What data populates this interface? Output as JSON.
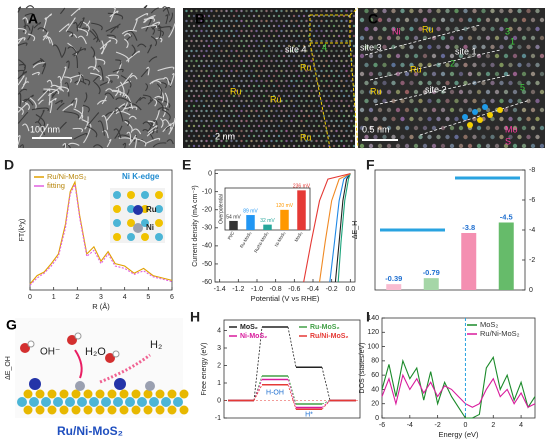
{
  "images": [
    {
      "label": "A",
      "texts": [
        "100 nm"
      ]
    },
    {
      "label": "B",
      "texts": [
        "site 4",
        "Ru",
        "Ru",
        "Ru",
        "Ru",
        "4",
        "2 nm"
      ]
    },
    {
      "label": "C",
      "texts": [
        "Ni",
        "Ru",
        "site 3",
        "site 1",
        "3",
        "1",
        "2",
        "Ru",
        "Ru",
        "site 2",
        "5",
        "Mo",
        "S",
        "0.5 nm"
      ]
    },
    {
      "label": "G",
      "texts": [
        "OH⁻",
        "H₂O",
        "H₂",
        "ΔE_OH",
        "Ru/Ni-MoS₂"
      ]
    }
  ],
  "chart_data": [
    {
      "type": "line",
      "label": "D",
      "xlabel": "R (Å)",
      "ylabel": "FT(k³χ)",
      "annotations": [
        "Ni K-edge",
        "Ru",
        "Ni"
      ],
      "xlim": [
        0,
        6
      ],
      "xticks": [
        0,
        1,
        2,
        3,
        4,
        5,
        6
      ],
      "ylim": [
        0,
        1
      ],
      "x": [
        0,
        0.3,
        0.6,
        0.9,
        1.2,
        1.5,
        1.7,
        1.9,
        2.1,
        2.4,
        2.7,
        3.0,
        3.3,
        3.6,
        4.0,
        4.4,
        4.8,
        5.2,
        5.6,
        6.0
      ],
      "series": [
        {
          "name": "Ru/Ni-MoS₂",
          "color": "#e0a000",
          "values": [
            0.05,
            0.12,
            0.15,
            0.22,
            0.3,
            0.55,
            0.82,
            0.9,
            0.62,
            0.3,
            0.36,
            0.24,
            0.32,
            0.22,
            0.2,
            0.14,
            0.18,
            0.12,
            0.1,
            0.08
          ]
        },
        {
          "name": "fitting",
          "color": "#e060e0",
          "values": [
            0.04,
            0.1,
            0.14,
            0.2,
            0.28,
            0.52,
            0.8,
            0.88,
            0.6,
            0.28,
            0.33,
            0.22,
            0.3,
            0.2,
            0.18,
            0.13,
            0.16,
            0.11,
            0.09,
            0.07
          ]
        }
      ]
    },
    {
      "type": "line",
      "label": "E",
      "xlabel": "Potential (V vs RHE)",
      "ylabel": "Current density (mA cm⁻²)",
      "xlim": [
        -1.45,
        0.05
      ],
      "xticks": [
        -1.4,
        -1.2,
        {
          "value": -1,
          "label": "-1.0"
        },
        -0.8,
        -0.6,
        -0.4,
        -0.2,
        {
          "value": 0,
          "label": "0.0"
        }
      ],
      "ylim": [
        -60,
        2
      ],
      "yticks": [
        0,
        -10,
        -20,
        -30,
        -40,
        -50,
        -60
      ],
      "series": [
        {
          "color": "#222222",
          "x": [
            0,
            -0.04,
            -0.08,
            -0.12,
            -0.16
          ],
          "values": [
            0,
            -3,
            -15,
            -38,
            -60
          ]
        },
        {
          "color": "#1e88e5",
          "x": [
            0,
            -0.07,
            -0.12,
            -0.17,
            -0.22
          ],
          "values": [
            0,
            -3,
            -15,
            -38,
            -60
          ]
        },
        {
          "color": "#1aa37a",
          "x": [
            0,
            -0.02,
            -0.06,
            -0.1,
            -0.13
          ],
          "values": [
            0,
            -3,
            -15,
            -38,
            -60
          ]
        },
        {
          "color": "#f08a24",
          "x": [
            0,
            -0.12,
            -0.2,
            -0.27,
            -0.33
          ],
          "values": [
            0,
            -3,
            -15,
            -38,
            -60
          ]
        },
        {
          "color": "#e53935",
          "x": [
            0,
            -0.24,
            -0.33,
            -0.42,
            -0.5
          ],
          "values": [
            0,
            -3,
            -15,
            -38,
            -60
          ]
        }
      ],
      "inset": {
        "type": "bar",
        "ylabel": "Overpotential",
        "ylim": [
          0,
          250
        ],
        "categories": [
          "Pt/C",
          "Ru-MoS₂",
          "Ru/Ni-MoS₂",
          "Ni-MoS₂",
          "MoS₂"
        ],
        "values": [
          54,
          89,
          32,
          120,
          236
        ],
        "value_labels": [
          "54 mV",
          "89 mV",
          "32 mV",
          "120 mV",
          "236 mV"
        ],
        "colors": [
          "#333333",
          "#2196f3",
          "#26a69a",
          "#ff9800",
          "#e53935"
        ]
      }
    },
    {
      "type": "bar",
      "label": "F",
      "ylabel": "ΔE_H",
      "ylim": [
        0,
        -8
      ],
      "yticks": [
        0,
        -2,
        -4,
        -6,
        -8
      ],
      "values": [
        -0.39,
        -0.79,
        -3.8,
        -4.5
      ],
      "colors": [
        "#f8bbd0",
        "#a5d6a7",
        "#f48fb1",
        "#66bb6a"
      ]
    },
    {
      "type": "energy",
      "label": "H",
      "ylabel": "Free energy (eV)",
      "ylim": [
        -1,
        4.6
      ],
      "yticks": [
        -1,
        0,
        1,
        2,
        3,
        4
      ],
      "annotations": [
        "H-OH",
        "H*"
      ],
      "series": [
        {
          "name": "MoS₂",
          "color": "#222222",
          "values": [
            0,
            4.2,
            1.9,
            0
          ]
        },
        {
          "name": "Ru-MoS₂",
          "color": "#43a047",
          "values": [
            0,
            1.4,
            -0.2,
            0
          ]
        },
        {
          "name": "Ni-MoS₂",
          "color": "#d81b9c",
          "values": [
            0,
            1.2,
            -0.4,
            0
          ]
        },
        {
          "name": "Ru/Ni-MoS₂",
          "color": "#e53935",
          "values": [
            0,
            0.9,
            -0.5,
            0
          ]
        }
      ]
    },
    {
      "type": "line",
      "label": "I",
      "xlabel": "Energy (eV)",
      "ylabel": "DOS (states/eV)",
      "xlim": [
        -6,
        5
      ],
      "xticks": [
        -6,
        -4,
        -2,
        0,
        2,
        4
      ],
      "ylim": [
        0,
        140
      ],
      "yticks": [
        0,
        20,
        40,
        60,
        80,
        100,
        120,
        140
      ],
      "x": [
        -6,
        -5.5,
        -5,
        -4.5,
        -4,
        -3.5,
        -3,
        -2.5,
        -2,
        -1.5,
        -1,
        -0.5,
        0,
        0.5,
        1,
        1.5,
        2,
        2.5,
        3,
        3.5,
        4,
        4.5,
        5
      ],
      "series": [
        {
          "name": "MoS₂",
          "color": "#1b8a2a",
          "values": [
            40,
            75,
            30,
            80,
            55,
            70,
            25,
            65,
            20,
            50,
            30,
            15,
            0,
            0,
            5,
            70,
            85,
            40,
            60,
            25,
            50,
            15,
            30
          ]
        },
        {
          "name": "Ru/Ni-MoS₂",
          "color": "#d81b9c",
          "values": [
            30,
            55,
            20,
            60,
            40,
            55,
            35,
            50,
            30,
            45,
            40,
            30,
            20,
            15,
            20,
            40,
            55,
            30,
            40,
            20,
            35,
            15,
            20
          ]
        }
      ]
    }
  ]
}
